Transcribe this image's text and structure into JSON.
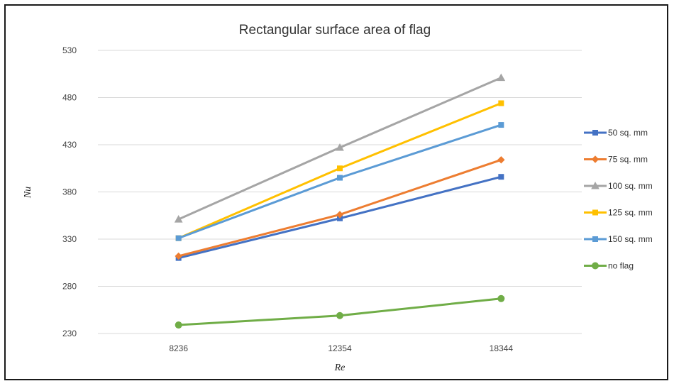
{
  "chart_data": {
    "type": "line",
    "title": "Rectangular surface area of flag",
    "xlabel": "Re",
    "ylabel": "Nu",
    "categories": [
      "8236",
      "12354",
      "18344"
    ],
    "ylim": [
      230,
      530
    ],
    "yticks": [
      230,
      280,
      330,
      380,
      430,
      480,
      530
    ],
    "grid": "horizontal",
    "legend_position": "right",
    "series": [
      {
        "name": "50 sq. mm",
        "values": [
          310,
          352,
          396
        ],
        "color": "#4472C4",
        "marker": "square"
      },
      {
        "name": "75 sq. mm",
        "values": [
          312,
          356,
          414
        ],
        "color": "#ED7D31",
        "marker": "diamond"
      },
      {
        "name": "100 sq. mm",
        "values": [
          351,
          427,
          501
        ],
        "color": "#A5A5A5",
        "marker": "triangle"
      },
      {
        "name": "125 sq. mm",
        "values": [
          331,
          405,
          474
        ],
        "color": "#FFC000",
        "marker": "square"
      },
      {
        "name": "150 sq. mm",
        "values": [
          331,
          395,
          451
        ],
        "color": "#5B9BD5",
        "marker": "square"
      },
      {
        "name": "no flag",
        "values": [
          239,
          249,
          267
        ],
        "color": "#70AD47",
        "marker": "circle"
      }
    ]
  }
}
